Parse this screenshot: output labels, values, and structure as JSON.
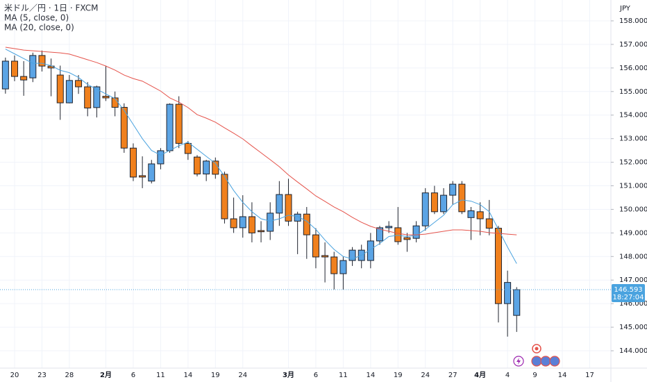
{
  "chart_data": {
    "type": "candlestick",
    "title": "米ドル／円 · 1日 · FXCM",
    "currency": "JPY",
    "categories": [
      null,
      "20",
      null,
      null,
      "23",
      null,
      null,
      "28",
      null,
      null,
      null,
      "2月",
      null,
      null,
      "6",
      null,
      null,
      "11",
      null,
      null,
      "14",
      null,
      null,
      "19",
      null,
      null,
      "24",
      null,
      null,
      null,
      null,
      "3月",
      null,
      null,
      "6",
      null,
      null,
      "11",
      null,
      null,
      "14",
      null,
      null,
      "19",
      null,
      null,
      "24",
      null,
      null,
      "27",
      null,
      null,
      "4月",
      null,
      null,
      "4",
      null,
      null,
      "9",
      null,
      null,
      "14",
      null,
      null,
      "17"
    ],
    "ohlc": {
      "up_color": "#5ba4e5",
      "down_color": "#f0801d",
      "outline_color": "#1e222d",
      "open": [
        155.11,
        156.29,
        155.64,
        155.58,
        156.53,
        156.08,
        155.7,
        154.52,
        155.47,
        155.2,
        154.32,
        154.8,
        154.73,
        154.33,
        152.6,
        151.43,
        151.2,
        151.93,
        152.49,
        154.46,
        152.8,
        152.22,
        151.5,
        152.05,
        151.49,
        149.6,
        149.22,
        149.69,
        149.1,
        149.07,
        149.84,
        150.63,
        149.5,
        149.8,
        148.92,
        148.04,
        147.98,
        147.27,
        147.83,
        147.83,
        147.83,
        148.66,
        149.22,
        149.22,
        148.8,
        148.77,
        149.3,
        150.7,
        149.9,
        150.6,
        151.07,
        149.65,
        149.9,
        149.6,
        149.2,
        146.0,
        145.5,
        null,
        null,
        null,
        null,
        null,
        null,
        null,
        null
      ],
      "high": [
        156.44,
        156.53,
        156.29,
        156.65,
        156.74,
        156.4,
        156.1,
        155.7,
        155.7,
        155.4,
        155.25,
        156.1,
        155.0,
        154.5,
        152.8,
        152.25,
        152.1,
        152.6,
        154.5,
        154.8,
        152.9,
        152.3,
        152.1,
        152.2,
        151.6,
        150.5,
        150.6,
        150.3,
        149.5,
        150.3,
        151.2,
        151.3,
        149.9,
        150.1,
        149.2,
        148.6,
        148.2,
        148.0,
        148.4,
        148.5,
        149.0,
        149.3,
        149.5,
        150.1,
        149.0,
        149.5,
        150.9,
        151.0,
        150.9,
        151.2,
        151.2,
        150.1,
        150.3,
        150.4,
        149.3,
        147.4,
        146.7,
        null,
        null,
        null,
        null,
        null,
        null,
        null,
        null
      ],
      "low": [
        154.91,
        155.44,
        154.82,
        155.4,
        155.85,
        154.8,
        153.8,
        154.5,
        154.9,
        153.95,
        153.9,
        154.6,
        153.95,
        152.4,
        151.2,
        150.9,
        151.1,
        151.7,
        152.4,
        152.6,
        152.1,
        151.4,
        151.2,
        151.3,
        149.4,
        149.0,
        148.8,
        148.6,
        148.6,
        148.7,
        149.3,
        149.3,
        148.1,
        147.9,
        147.5,
        146.9,
        146.6,
        146.6,
        147.6,
        147.5,
        147.5,
        148.5,
        149.0,
        148.5,
        148.2,
        148.6,
        149.1,
        149.8,
        149.8,
        150.2,
        149.8,
        148.7,
        148.9,
        148.9,
        145.2,
        144.6,
        144.8,
        null,
        null,
        null,
        null,
        null,
        null,
        null,
        null
      ],
      "close": [
        156.29,
        155.64,
        155.49,
        156.53,
        156.08,
        156.0,
        154.52,
        155.47,
        155.2,
        154.3,
        155.2,
        154.73,
        154.33,
        152.6,
        151.37,
        151.37,
        151.93,
        152.49,
        154.46,
        152.8,
        152.37,
        151.5,
        152.05,
        151.49,
        149.6,
        149.22,
        149.69,
        149.0,
        149.05,
        149.84,
        150.63,
        149.5,
        149.8,
        148.92,
        147.98,
        147.98,
        147.27,
        147.83,
        148.27,
        148.27,
        148.66,
        149.22,
        149.28,
        148.63,
        148.72,
        149.3,
        150.7,
        149.9,
        150.6,
        151.07,
        149.9,
        149.94,
        149.6,
        149.2,
        146.0,
        146.9,
        146.593,
        null,
        null,
        null,
        null,
        null,
        null,
        null,
        null
      ]
    },
    "series": [
      {
        "name": "MA (5, close, 0)",
        "color": "#4aa3df",
        "values": [
          156.8,
          156.6,
          156.4,
          156.2,
          156.2,
          156.1,
          155.9,
          155.8,
          155.6,
          155.3,
          155.1,
          154.9,
          154.7,
          154.2,
          153.6,
          153.0,
          152.5,
          152.3,
          152.5,
          152.7,
          152.85,
          152.55,
          152.25,
          151.95,
          151.4,
          150.8,
          150.3,
          149.9,
          149.6,
          149.5,
          149.6,
          149.75,
          149.7,
          149.5,
          149.15,
          148.7,
          148.3,
          148.0,
          147.9,
          148.05,
          148.3,
          148.55,
          148.85,
          148.9,
          148.85,
          148.9,
          149.15,
          149.45,
          149.75,
          150.2,
          150.4,
          150.35,
          150.2,
          149.9,
          149.15,
          148.4,
          147.7,
          null,
          null,
          null,
          null,
          null,
          null,
          null,
          null
        ]
      },
      {
        "name": "MA (20, close, 0)",
        "color": "#e5534b",
        "values": [
          156.88,
          156.82,
          156.76,
          156.73,
          156.7,
          156.67,
          156.64,
          156.59,
          156.47,
          156.35,
          156.23,
          156.08,
          155.91,
          155.7,
          155.55,
          155.44,
          155.23,
          155.02,
          154.73,
          154.55,
          154.32,
          154.02,
          153.87,
          153.7,
          153.46,
          153.23,
          152.99,
          152.69,
          152.4,
          152.11,
          151.81,
          151.46,
          151.16,
          150.87,
          150.57,
          150.34,
          150.1,
          149.9,
          149.66,
          149.45,
          149.28,
          149.16,
          149.07,
          148.98,
          148.92,
          148.92,
          148.95,
          149.01,
          149.07,
          149.13,
          149.13,
          149.1,
          149.07,
          149.01,
          148.98,
          148.95,
          148.92,
          null,
          null,
          null,
          null,
          null,
          null,
          null,
          null
        ]
      }
    ],
    "last_price": 146.593,
    "last_price_color": "#4aa3df",
    "countdown": "18:27:04",
    "ylim": [
      143.264,
      158.884
    ],
    "yticks": [
      {
        "value": 144,
        "label": "144.000"
      },
      {
        "value": 145,
        "label": "145.000"
      },
      {
        "value": 146,
        "label": "146.000"
      },
      {
        "value": 147,
        "label": "147.000"
      },
      {
        "value": 148,
        "label": "148.000"
      },
      {
        "value": 149,
        "label": "149.000"
      },
      {
        "value": 150,
        "label": "150.000"
      },
      {
        "value": 151,
        "label": "151.000"
      },
      {
        "value": 152,
        "label": "152.000"
      },
      {
        "value": 153,
        "label": "153.000"
      },
      {
        "value": 154,
        "label": "154.000"
      },
      {
        "value": 155,
        "label": "155.000"
      },
      {
        "value": 156,
        "label": "156.000"
      },
      {
        "value": 157,
        "label": "157.000"
      },
      {
        "value": 158,
        "label": "158.000"
      }
    ],
    "grid": true
  }
}
